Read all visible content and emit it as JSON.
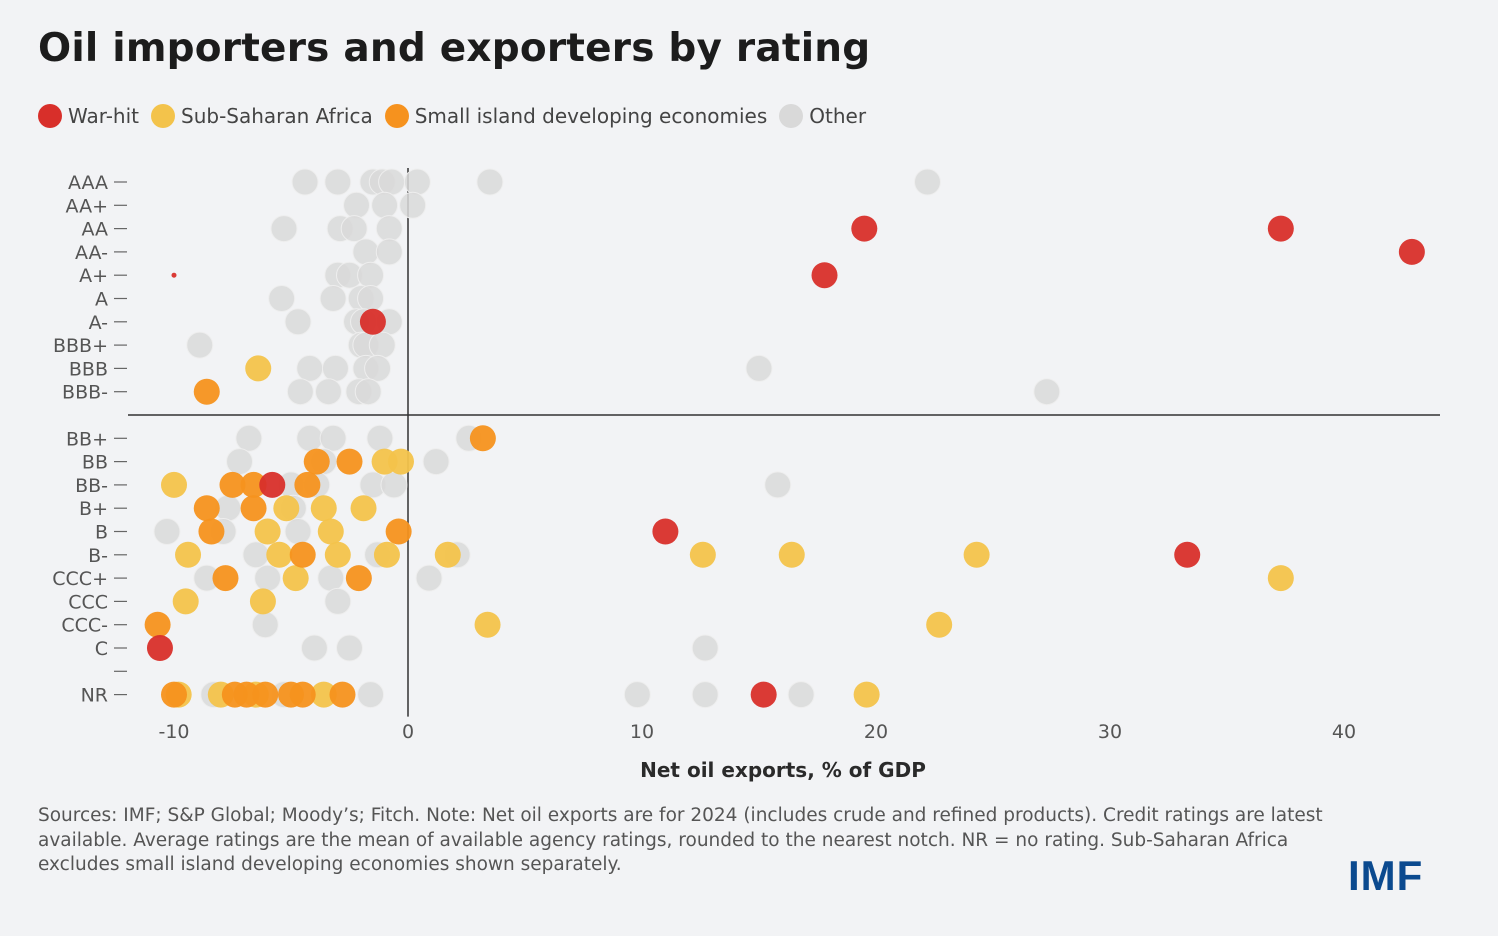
{
  "title": "Oil importers and exporters by rating",
  "legend": [
    {
      "label": "War-hit",
      "color": "#d82f2a"
    },
    {
      "label": "Sub-Saharan Africa",
      "color": "#f3c34b"
    },
    {
      "label": "Small island developing economies",
      "color": "#f6921e"
    },
    {
      "label": "Other",
      "color": "#d9d9d9"
    }
  ],
  "chart_data": {
    "type": "scatter",
    "xlabel": "Net oil exports, % of GDP",
    "xlim": [
      -12,
      44
    ],
    "xticks": [
      "-10",
      "0",
      "10",
      "20",
      "30",
      "40"
    ],
    "categories": [
      "AAA",
      "AA+",
      "AA",
      "AA-",
      "A+",
      "A",
      "A-",
      "BBB+",
      "BBB",
      "BBB-",
      "BB+",
      "BB",
      "BB-",
      "B+",
      "B",
      "B-",
      "CCC+",
      "CCC",
      "CCC-",
      "C",
      "",
      "NR"
    ],
    "investment_grade_divider_after": "BBB-",
    "series": [
      {
        "name": "War-hit",
        "color": "#d82f2a",
        "points": [
          [
            "AA",
            19.5
          ],
          [
            "AA",
            37.3
          ],
          [
            "AA-",
            42.9
          ],
          [
            "A+",
            17.8
          ],
          [
            "A+",
            -10
          ],
          [
            "A-",
            -1.5
          ],
          [
            "BB-",
            -5.8
          ],
          [
            "B",
            11
          ],
          [
            "B-",
            33.3
          ],
          [
            "C",
            -10.6
          ],
          [
            "NR",
            15.2
          ]
        ]
      },
      {
        "name": "Sub-Saharan Africa",
        "color": "#f3c34b",
        "points": [
          [
            "BBB",
            -6.4
          ],
          [
            "BB",
            -1.0
          ],
          [
            "BB",
            -0.3
          ],
          [
            "BB-",
            -10.0
          ],
          [
            "B+",
            -5.2
          ],
          [
            "B+",
            -3.6
          ],
          [
            "B+",
            -1.9
          ],
          [
            "B",
            -6.0
          ],
          [
            "B",
            -3.3
          ],
          [
            "B-",
            -9.4
          ],
          [
            "B-",
            -5.5
          ],
          [
            "B-",
            -3.0
          ],
          [
            "B-",
            -0.9
          ],
          [
            "B-",
            1.7
          ],
          [
            "B-",
            12.6
          ],
          [
            "B-",
            16.4
          ],
          [
            "B-",
            24.3
          ],
          [
            "CCC+",
            -4.8
          ],
          [
            "CCC+",
            37.3
          ],
          [
            "CCC",
            -9.5
          ],
          [
            "CCC",
            -6.2
          ],
          [
            "CCC-",
            3.4
          ],
          [
            "CCC-",
            22.7
          ],
          [
            "NR",
            -9.8
          ],
          [
            "NR",
            -8.0
          ],
          [
            "NR",
            -6.5
          ],
          [
            "NR",
            -3.6
          ],
          [
            "NR",
            19.6
          ]
        ]
      },
      {
        "name": "Small island developing economies",
        "color": "#f6921e",
        "points": [
          [
            "BBB-",
            -8.6
          ],
          [
            "BB+",
            3.2
          ],
          [
            "BB",
            -3.9
          ],
          [
            "BB",
            -2.5
          ],
          [
            "BB-",
            -7.5
          ],
          [
            "BB-",
            -6.6
          ],
          [
            "BB-",
            -4.3
          ],
          [
            "B+",
            -8.6
          ],
          [
            "B+",
            -6.6
          ],
          [
            "B",
            -8.4
          ],
          [
            "B",
            -0.4
          ],
          [
            "B-",
            -4.5
          ],
          [
            "CCC+",
            -7.8
          ],
          [
            "CCC+",
            -2.1
          ],
          [
            "CCC-",
            -10.7
          ],
          [
            "NR",
            -10.0
          ],
          [
            "NR",
            -7.4
          ],
          [
            "NR",
            -6.9
          ],
          [
            "NR",
            -6.1
          ],
          [
            "NR",
            -5.0
          ],
          [
            "NR",
            -4.5
          ],
          [
            "NR",
            -2.8
          ]
        ]
      },
      {
        "name": "Other",
        "color": "#d9d9d9",
        "points": [
          [
            "AAA",
            -4.4
          ],
          [
            "AAA",
            -3.0
          ],
          [
            "AAA",
            -1.5
          ],
          [
            "AAA",
            -1.1
          ],
          [
            "AAA",
            -0.7
          ],
          [
            "AAA",
            0.4
          ],
          [
            "AAA",
            3.5
          ],
          [
            "AAA",
            22.2
          ],
          [
            "AA+",
            -2.2
          ],
          [
            "AA+",
            -1.0
          ],
          [
            "AA+",
            0.2
          ],
          [
            "AA",
            -5.3
          ],
          [
            "AA",
            -2.9
          ],
          [
            "AA",
            -2.3
          ],
          [
            "AA",
            -0.8
          ],
          [
            "AA-",
            -1.8
          ],
          [
            "AA-",
            -0.8
          ],
          [
            "A+",
            -3.0
          ],
          [
            "A+",
            -2.5
          ],
          [
            "A+",
            -1.6
          ],
          [
            "A",
            -5.4
          ],
          [
            "A",
            -3.2
          ],
          [
            "A",
            -2.0
          ],
          [
            "A",
            -1.6
          ],
          [
            "A-",
            -4.7
          ],
          [
            "A-",
            -2.2
          ],
          [
            "A-",
            -1.9
          ],
          [
            "A-",
            -0.8
          ],
          [
            "BBB+",
            -8.9
          ],
          [
            "BBB+",
            -2.0
          ],
          [
            "BBB+",
            -1.8
          ],
          [
            "BBB+",
            -1.1
          ],
          [
            "BBB",
            -4.2
          ],
          [
            "BBB",
            -3.1
          ],
          [
            "BBB",
            -1.8
          ],
          [
            "BBB",
            -1.3
          ],
          [
            "BBB",
            15.0
          ],
          [
            "BBB-",
            -4.6
          ],
          [
            "BBB-",
            -3.4
          ],
          [
            "BBB-",
            -2.1
          ],
          [
            "BBB-",
            -1.7
          ],
          [
            "BBB-",
            27.3
          ],
          [
            "BB+",
            -6.8
          ],
          [
            "BB+",
            -4.2
          ],
          [
            "BB+",
            -3.2
          ],
          [
            "BB+",
            -1.2
          ],
          [
            "BB+",
            2.6
          ],
          [
            "BB",
            -7.2
          ],
          [
            "BB",
            -3.6
          ],
          [
            "BB",
            1.2
          ],
          [
            "BB-",
            -5.0
          ],
          [
            "BB-",
            -3.9
          ],
          [
            "BB-",
            -1.5
          ],
          [
            "BB-",
            -0.6
          ],
          [
            "BB-",
            15.8
          ],
          [
            "B+",
            -7.7
          ],
          [
            "B+",
            -4.9
          ],
          [
            "B",
            -10.3
          ],
          [
            "B",
            -7.9
          ],
          [
            "B",
            -4.7
          ],
          [
            "B-",
            -6.5
          ],
          [
            "B-",
            -1.3
          ],
          [
            "B-",
            2.1
          ],
          [
            "CCC+",
            -8.6
          ],
          [
            "CCC+",
            -6.0
          ],
          [
            "CCC+",
            -3.3
          ],
          [
            "CCC+",
            0.9
          ],
          [
            "CCC",
            -3.0
          ],
          [
            "CCC-",
            -6.1
          ],
          [
            "C",
            -4.0
          ],
          [
            "C",
            -2.5
          ],
          [
            "C",
            12.7
          ],
          [
            "NR",
            -8.3
          ],
          [
            "NR",
            -5.3
          ],
          [
            "NR",
            -1.6
          ],
          [
            "NR",
            9.8
          ],
          [
            "NR",
            12.7
          ],
          [
            "NR",
            16.8
          ]
        ]
      }
    ]
  },
  "note": "Sources: IMF; S&P Global; Moody’s; Fitch. Note: Net oil exports are for 2024 (includes crude and refined products). Credit ratings are latest available. Average ratings are the mean of available agency ratings, rounded to the nearest notch. NR = no rating. Sub-Saharan Africa excludes small island developing economies shown separately.",
  "logo": "IMF"
}
